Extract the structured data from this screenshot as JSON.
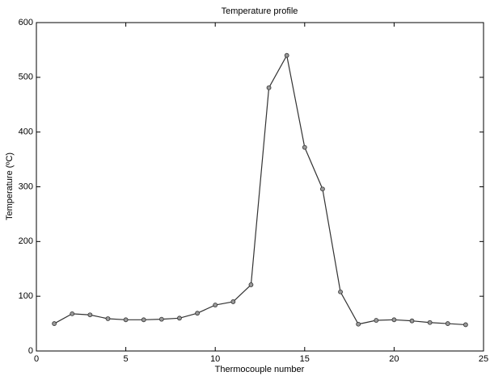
{
  "chart_data": {
    "type": "line",
    "title": "Temperature profile",
    "x_label": "Thermocouple number",
    "y_label": "Temperature (ºC)",
    "x": [
      1,
      2,
      3,
      4,
      5,
      6,
      7,
      8,
      9,
      10,
      11,
      12,
      13,
      14,
      15,
      16,
      17,
      18,
      19,
      20,
      21,
      22,
      23,
      24
    ],
    "series": [
      {
        "name": "Temperature",
        "color": "#333333",
        "values": [
          50,
          68,
          66,
          59,
          57,
          57,
          58,
          60,
          69,
          84,
          90,
          121,
          481,
          540,
          372,
          296,
          108,
          49,
          56,
          57,
          55,
          52,
          50,
          48
        ]
      }
    ],
    "xlim": [
      0,
      25
    ],
    "xticks": [
      0,
      5,
      10,
      15,
      20,
      25
    ],
    "ylim": [
      0,
      600
    ],
    "yticks": [
      0,
      100,
      200,
      300,
      400,
      500,
      600
    ],
    "grid": false,
    "legend": false
  }
}
